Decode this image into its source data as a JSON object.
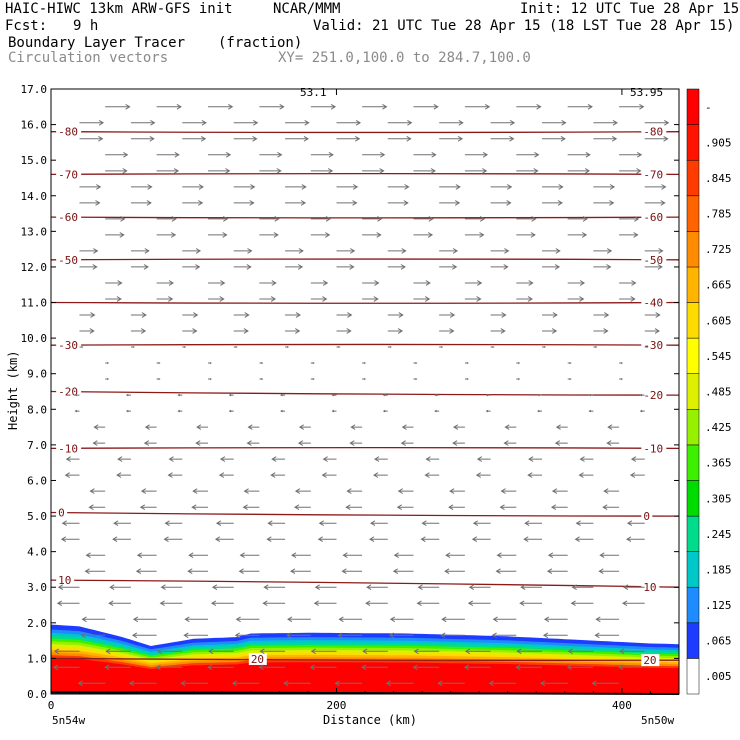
{
  "header": {
    "model": "HAIC-HIWC 13km ARW-GFS init",
    "org": "NCAR/MMM",
    "init": "Init: 12 UTC Tue 28 Apr 15",
    "fcst_label": "Fcst:",
    "fcst_value": "9 h",
    "valid": "Valid: 21 UTC Tue 28 Apr 15 (18 LST Tue 28 Apr 15)",
    "field": "Boundary Layer Tracer",
    "field_unit": "(fraction)",
    "overlay": "Circulation vectors",
    "xy": "XY= 251.0,100.0 to 284.7,100.0"
  },
  "chart_data": {
    "type": "cross-section",
    "xlabel": "Distance (km)",
    "ylabel": "Height (km)",
    "xlim": [
      0,
      440
    ],
    "ylim": [
      0,
      17
    ],
    "x_ticks": [
      0,
      200,
      400
    ],
    "y_ticks": [
      "0.0",
      "1.0",
      "2.0",
      "3.0",
      "4.0",
      "5.0",
      "6.0",
      "7.0",
      "8.0",
      "9.0",
      "10.0",
      "11.0",
      "12.0",
      "13.0",
      "14.0",
      "15.0",
      "16.0",
      "17.0"
    ],
    "left_endpoint": "5n54w",
    "right_endpoint": "5n50w",
    "top_left_label": "53.1",
    "top_right_label": "53.95",
    "isotherms": [
      {
        "label": "20",
        "height_left": 1.0,
        "height_right": 0.95,
        "labels_at": [
          220,
          840
        ]
      },
      {
        "label": "10",
        "height_left": 3.2,
        "height_right": 3.0,
        "labels_at": [
          10,
          830
        ]
      },
      {
        "label": "0",
        "height_left": 5.1,
        "height_right": 5.0,
        "labels_at": [
          60,
          830
        ]
      },
      {
        "label": "-10",
        "height_left": 6.9,
        "height_right": 6.9,
        "labels_at": [
          30,
          830
        ]
      },
      {
        "label": "-20",
        "height_left": 8.5,
        "height_right": 8.4,
        "labels_at": [
          30,
          830
        ]
      },
      {
        "label": "-30",
        "height_left": 9.8,
        "height_right": 9.8,
        "labels_at": [
          40,
          830
        ]
      },
      {
        "label": "-40",
        "height_left": 11.0,
        "height_right": 11.0,
        "labels_at": [
          830
        ]
      },
      {
        "label": "-50",
        "height_left": 12.2,
        "height_right": 12.2,
        "labels_at": [
          20,
          830
        ]
      },
      {
        "label": "-60",
        "height_left": 13.4,
        "height_right": 13.4,
        "labels_at": [
          20,
          830
        ]
      },
      {
        "label": "-70",
        "height_left": 14.6,
        "height_right": 14.6,
        "labels_at": [
          20,
          830
        ]
      },
      {
        "label": "-80",
        "height_left": 15.8,
        "height_right": 15.8,
        "labels_at": [
          20,
          830
        ]
      }
    ],
    "boundary_layer_top_km": [
      [
        0,
        1.95
      ],
      [
        20,
        1.9
      ],
      [
        35,
        1.75
      ],
      [
        50,
        1.6
      ],
      [
        70,
        1.35
      ],
      [
        85,
        1.45
      ],
      [
        100,
        1.55
      ],
      [
        130,
        1.6
      ],
      [
        140,
        1.7
      ],
      [
        180,
        1.72
      ],
      [
        250,
        1.7
      ],
      [
        320,
        1.62
      ],
      [
        380,
        1.5
      ],
      [
        420,
        1.42
      ],
      [
        440,
        1.4
      ]
    ],
    "colorbar": {
      "labels": [
        ".005",
        ".065",
        ".125",
        ".185",
        ".245",
        ".305",
        ".365",
        ".425",
        ".485",
        ".545",
        ".605",
        ".665",
        ".725",
        ".785",
        ".845",
        ".905",
        "-"
      ],
      "colors": [
        "#ffffff",
        "#1e3cff",
        "#1e8cff",
        "#00c8c8",
        "#00dc8c",
        "#00dc00",
        "#3cf000",
        "#96f000",
        "#dcf000",
        "#ffff00",
        "#ffdc00",
        "#ffb400",
        "#ff8c00",
        "#ff6400",
        "#ff3c00",
        "#ff1400",
        "#ff0000"
      ]
    },
    "wind_vectors": {
      "upper_direction": "eastward",
      "lower_direction": "westward",
      "reversal_height_km": 8.8
    }
  }
}
